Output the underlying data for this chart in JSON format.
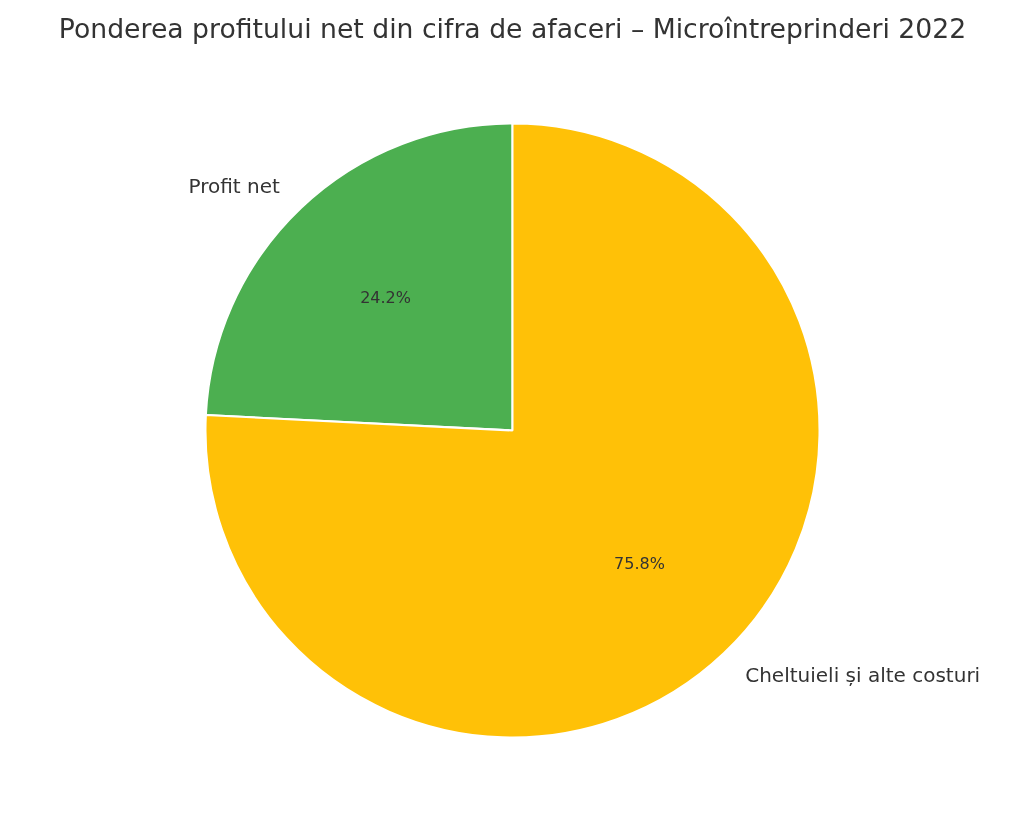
{
  "chart_data": {
    "type": "pie",
    "title": "Ponderea profitului net din cifra de afaceri – Microîntreprinderi 2022",
    "categories": [
      "Profit net",
      "Cheltuieli și alte costuri"
    ],
    "values": [
      24.2,
      75.8
    ],
    "colors": [
      "#4caf50",
      "#ffc107"
    ],
    "value_labels": [
      "24.2%",
      "75.8%"
    ]
  }
}
